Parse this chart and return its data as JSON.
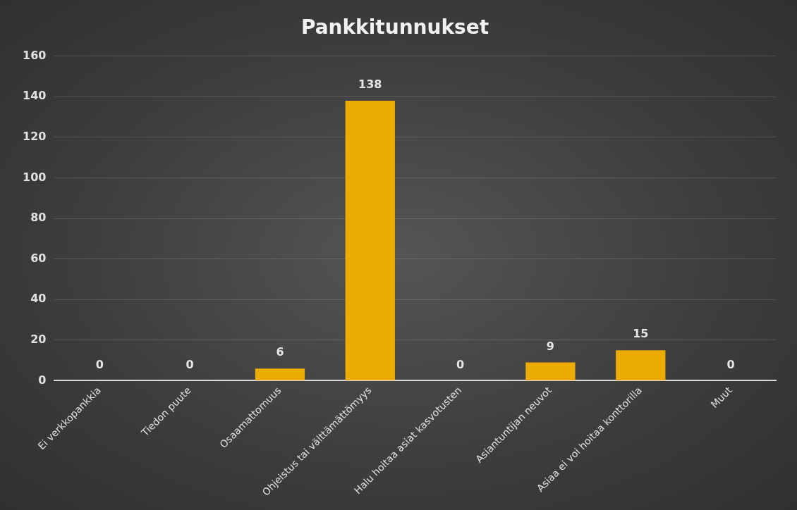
{
  "chart_data": {
    "type": "bar",
    "title": "Pankkitunnukset",
    "categories": [
      "Ei verkkopankkia",
      "Tiedon puute",
      "Osaamattomuus",
      "Ohjeistus tai välttämättömyys",
      "Halu hoitaa asiat kasvotusten",
      "Asiantuntijan neuvot",
      "Asiaa ei voi hoitaa konttorilla",
      "Muut"
    ],
    "values": [
      0,
      0,
      6,
      138,
      0,
      9,
      15,
      0
    ],
    "color": "#ecab00",
    "ylim": [
      0,
      160
    ],
    "yticks": [
      0,
      20,
      40,
      60,
      80,
      100,
      120,
      140,
      160
    ],
    "grid": "y",
    "data_labels": true
  }
}
